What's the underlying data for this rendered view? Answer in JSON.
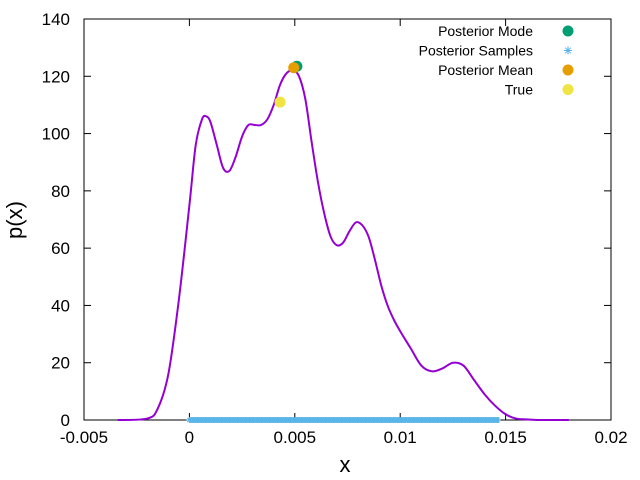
{
  "chart_data": {
    "type": "line",
    "xlabel": "x",
    "ylabel": "p(x)",
    "xlim": [
      -0.005,
      0.02
    ],
    "ylim": [
      0,
      140
    ],
    "x_ticks": [
      -0.005,
      0,
      0.005,
      0.01,
      0.015,
      0.02
    ],
    "x_tick_labels": [
      "-0.005",
      "0",
      "0.005",
      "0.01",
      "0.015",
      "0.02"
    ],
    "y_ticks": [
      0,
      20,
      40,
      60,
      80,
      100,
      120,
      140
    ],
    "y_tick_labels": [
      "0",
      "20",
      "40",
      "60",
      "80",
      "100",
      "120",
      "140"
    ],
    "grid": false,
    "legend_position": "top-right",
    "density_curve": {
      "color": "#9400d3",
      "x": [
        -0.0034,
        -0.002,
        -0.0015,
        -0.001,
        -0.0005,
        0,
        0.0003,
        0.0006,
        0.0008,
        0.001,
        0.0013,
        0.0016,
        0.0019,
        0.0022,
        0.0025,
        0.0028,
        0.0031,
        0.0034,
        0.0037,
        0.004,
        0.0043,
        0.0046,
        0.0049,
        0.0052,
        0.0055,
        0.0058,
        0.0061,
        0.0064,
        0.0067,
        0.007,
        0.0073,
        0.0076,
        0.0079,
        0.0082,
        0.0085,
        0.0088,
        0.0091,
        0.0094,
        0.0097,
        0.01,
        0.0105,
        0.011,
        0.0115,
        0.012,
        0.0125,
        0.013,
        0.0135,
        0.014,
        0.0145,
        0.015,
        0.0155,
        0.016,
        0.0165,
        0.017,
        0.018
      ],
      "y": [
        0,
        0.5,
        4,
        16,
        42,
        75,
        96,
        105,
        106,
        104,
        96,
        88,
        87,
        92,
        99,
        103,
        103,
        103,
        105,
        110,
        117,
        121,
        122,
        120,
        112,
        97,
        83,
        72,
        64,
        61,
        62,
        66,
        69,
        68,
        64,
        56,
        47,
        40,
        35,
        31,
        25,
        19,
        17,
        18,
        20,
        19,
        14,
        9,
        5,
        2,
        0.5,
        0.2,
        0,
        0,
        0
      ]
    },
    "series": [
      {
        "name": "Posterior Mode",
        "color": "#009e73",
        "marker": "circle",
        "points": [
          [
            0.0051,
            123.5
          ]
        ]
      },
      {
        "name": "Posterior Samples",
        "color": "#56b4e9",
        "marker": "asterisk",
        "x_range": [
          0.0,
          0.0147
        ],
        "y": 0
      },
      {
        "name": "Posterior Mean",
        "color": "#e69f00",
        "marker": "circle",
        "points": [
          [
            0.00495,
            123
          ]
        ]
      },
      {
        "name": "True",
        "color": "#f0e442",
        "marker": "circle",
        "points": [
          [
            0.0043,
            111
          ]
        ]
      }
    ]
  }
}
